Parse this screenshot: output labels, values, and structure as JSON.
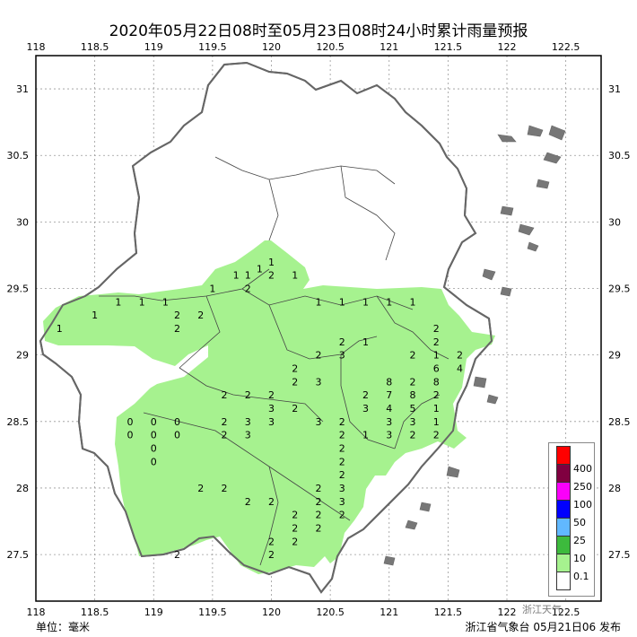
{
  "title": "2020年05月22日08时至05月23日08时24小时累计雨量预报",
  "axes": {
    "lon_ticks": [
      "118",
      "118.5",
      "119",
      "119.5",
      "120",
      "120.5",
      "121",
      "121.5",
      "122",
      "122.5"
    ],
    "lat_ticks": [
      "31",
      "30.5",
      "30",
      "29.5",
      "29",
      "28.5",
      "28",
      "27.5"
    ]
  },
  "footer": {
    "unit": "单位：毫米",
    "issuer": "浙江省气象台 05月21日06 发布",
    "watermark": "浙江天气"
  },
  "legend": {
    "levels": [
      "0.1",
      "10",
      "25",
      "50",
      "100",
      "250",
      "400"
    ],
    "colors": [
      "#ffffff",
      "#a6f28f",
      "#3dba3d",
      "#61b8ff",
      "#0000ff",
      "#fa00fa",
      "#800040",
      "#ff0000"
    ]
  },
  "station_values": [
    {
      "lon": 119.9,
      "lat": 29.65,
      "v": "1"
    },
    {
      "lon": 120.0,
      "lat": 29.7,
      "v": "1"
    },
    {
      "lon": 119.7,
      "lat": 29.6,
      "v": "1"
    },
    {
      "lon": 119.8,
      "lat": 29.6,
      "v": "1"
    },
    {
      "lon": 120.0,
      "lat": 29.6,
      "v": "2"
    },
    {
      "lon": 120.2,
      "lat": 29.6,
      "v": "1"
    },
    {
      "lon": 118.7,
      "lat": 29.4,
      "v": "1"
    },
    {
      "lon": 118.9,
      "lat": 29.4,
      "v": "1"
    },
    {
      "lon": 119.1,
      "lat": 29.4,
      "v": "1"
    },
    {
      "lon": 119.5,
      "lat": 29.5,
      "v": "1"
    },
    {
      "lon": 119.8,
      "lat": 29.5,
      "v": "2"
    },
    {
      "lon": 120.4,
      "lat": 29.4,
      "v": "1"
    },
    {
      "lon": 120.6,
      "lat": 29.4,
      "v": "1"
    },
    {
      "lon": 120.8,
      "lat": 29.4,
      "v": "1"
    },
    {
      "lon": 121.0,
      "lat": 29.4,
      "v": "1"
    },
    {
      "lon": 121.2,
      "lat": 29.4,
      "v": "1"
    },
    {
      "lon": 118.5,
      "lat": 29.3,
      "v": "1"
    },
    {
      "lon": 119.2,
      "lat": 29.3,
      "v": "2"
    },
    {
      "lon": 119.4,
      "lat": 29.3,
      "v": "2"
    },
    {
      "lon": 121.4,
      "lat": 29.2,
      "v": "2"
    },
    {
      "lon": 118.2,
      "lat": 29.2,
      "v": "1"
    },
    {
      "lon": 119.2,
      "lat": 29.2,
      "v": "2"
    },
    {
      "lon": 120.6,
      "lat": 29.1,
      "v": "2"
    },
    {
      "lon": 120.8,
      "lat": 29.1,
      "v": "1"
    },
    {
      "lon": 121.4,
      "lat": 29.1,
      "v": "2"
    },
    {
      "lon": 121.6,
      "lat": 29.0,
      "v": "2"
    },
    {
      "lon": 120.4,
      "lat": 29.0,
      "v": "2"
    },
    {
      "lon": 120.6,
      "lat": 29.0,
      "v": "3"
    },
    {
      "lon": 121.2,
      "lat": 29.0,
      "v": "2"
    },
    {
      "lon": 121.4,
      "lat": 29.0,
      "v": "1"
    },
    {
      "lon": 120.2,
      "lat": 28.9,
      "v": "2"
    },
    {
      "lon": 121.0,
      "lat": 28.8,
      "v": "8"
    },
    {
      "lon": 121.2,
      "lat": 28.8,
      "v": "2"
    },
    {
      "lon": 121.4,
      "lat": 28.8,
      "v": "8"
    },
    {
      "lon": 121.4,
      "lat": 28.9,
      "v": "6"
    },
    {
      "lon": 121.6,
      "lat": 28.9,
      "v": "4"
    },
    {
      "lon": 120.4,
      "lat": 28.8,
      "v": "3"
    },
    {
      "lon": 120.2,
      "lat": 28.8,
      "v": "2"
    },
    {
      "lon": 119.8,
      "lat": 28.7,
      "v": "2"
    },
    {
      "lon": 120.0,
      "lat": 28.7,
      "v": "2"
    },
    {
      "lon": 120.8,
      "lat": 28.7,
      "v": "2"
    },
    {
      "lon": 121.0,
      "lat": 28.7,
      "v": "7"
    },
    {
      "lon": 121.2,
      "lat": 28.7,
      "v": "8"
    },
    {
      "lon": 121.4,
      "lat": 28.7,
      "v": "2"
    },
    {
      "lon": 119.6,
      "lat": 28.7,
      "v": "2"
    },
    {
      "lon": 120.0,
      "lat": 28.6,
      "v": "3"
    },
    {
      "lon": 120.2,
      "lat": 28.6,
      "v": "2"
    },
    {
      "lon": 120.8,
      "lat": 28.6,
      "v": "3"
    },
    {
      "lon": 121.0,
      "lat": 28.6,
      "v": "4"
    },
    {
      "lon": 121.2,
      "lat": 28.6,
      "v": "5"
    },
    {
      "lon": 121.4,
      "lat": 28.6,
      "v": "1"
    },
    {
      "lon": 119.8,
      "lat": 28.5,
      "v": "3"
    },
    {
      "lon": 120.0,
      "lat": 28.5,
      "v": "3"
    },
    {
      "lon": 120.4,
      "lat": 28.5,
      "v": "3"
    },
    {
      "lon": 120.6,
      "lat": 28.5,
      "v": "2"
    },
    {
      "lon": 121.0,
      "lat": 28.5,
      "v": "3"
    },
    {
      "lon": 121.2,
      "lat": 28.5,
      "v": "3"
    },
    {
      "lon": 121.4,
      "lat": 28.5,
      "v": "1"
    },
    {
      "lon": 118.8,
      "lat": 28.5,
      "v": "0"
    },
    {
      "lon": 119.0,
      "lat": 28.5,
      "v": "0"
    },
    {
      "lon": 119.2,
      "lat": 28.5,
      "v": "0"
    },
    {
      "lon": 118.8,
      "lat": 28.4,
      "v": "0"
    },
    {
      "lon": 119.0,
      "lat": 28.4,
      "v": "0"
    },
    {
      "lon": 119.2,
      "lat": 28.4,
      "v": "0"
    },
    {
      "lon": 119.0,
      "lat": 28.3,
      "v": "0"
    },
    {
      "lon": 119.0,
      "lat": 28.2,
      "v": "0"
    },
    {
      "lon": 121.4,
      "lat": 28.4,
      "v": "2"
    },
    {
      "lon": 121.0,
      "lat": 28.4,
      "v": "3"
    },
    {
      "lon": 121.2,
      "lat": 28.4,
      "v": "2"
    },
    {
      "lon": 119.6,
      "lat": 28.5,
      "v": "2"
    },
    {
      "lon": 119.6,
      "lat": 28.4,
      "v": "2"
    },
    {
      "lon": 119.8,
      "lat": 28.4,
      "v": "3"
    },
    {
      "lon": 120.6,
      "lat": 28.4,
      "v": "2"
    },
    {
      "lon": 120.8,
      "lat": 28.4,
      "v": "1"
    },
    {
      "lon": 120.6,
      "lat": 28.3,
      "v": "2"
    },
    {
      "lon": 120.6,
      "lat": 28.2,
      "v": "2"
    },
    {
      "lon": 120.6,
      "lat": 28.1,
      "v": "2"
    },
    {
      "lon": 119.4,
      "lat": 28.0,
      "v": "2"
    },
    {
      "lon": 119.6,
      "lat": 28.0,
      "v": "2"
    },
    {
      "lon": 120.4,
      "lat": 28.0,
      "v": "2"
    },
    {
      "lon": 120.6,
      "lat": 28.0,
      "v": "3"
    },
    {
      "lon": 119.8,
      "lat": 27.9,
      "v": "2"
    },
    {
      "lon": 120.0,
      "lat": 27.9,
      "v": "2"
    },
    {
      "lon": 120.4,
      "lat": 27.9,
      "v": "2"
    },
    {
      "lon": 120.6,
      "lat": 27.9,
      "v": "3"
    },
    {
      "lon": 120.2,
      "lat": 27.8,
      "v": "2"
    },
    {
      "lon": 120.4,
      "lat": 27.8,
      "v": "2"
    },
    {
      "lon": 120.6,
      "lat": 27.8,
      "v": "2"
    },
    {
      "lon": 120.2,
      "lat": 27.7,
      "v": "2"
    },
    {
      "lon": 120.4,
      "lat": 27.7,
      "v": "2"
    },
    {
      "lon": 120.0,
      "lat": 27.6,
      "v": "2"
    },
    {
      "lon": 120.2,
      "lat": 27.6,
      "v": "2"
    },
    {
      "lon": 119.2,
      "lat": 27.5,
      "v": "2"
    },
    {
      "lon": 120.0,
      "lat": 27.5,
      "v": "2"
    }
  ]
}
